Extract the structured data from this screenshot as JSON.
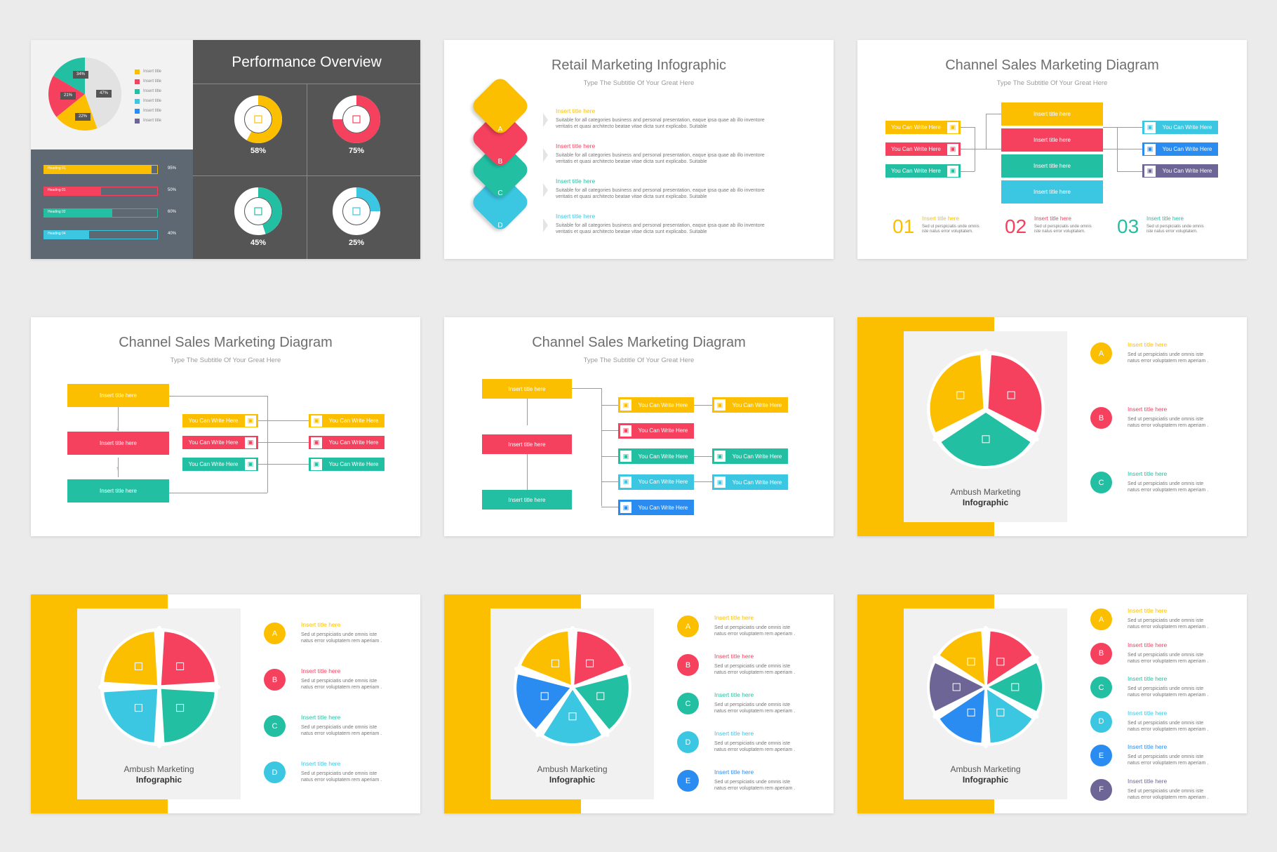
{
  "colors": {
    "yellow": "#fbbf00",
    "red": "#f5405e",
    "teal": "#23bfa3",
    "cyan": "#3bc6e2",
    "blue": "#2a8cf0",
    "purple": "#6d6596",
    "dark": "#555555",
    "slate": "#5e6872"
  },
  "perf": {
    "title": "Performance Overview",
    "pie_labels": [
      "34%",
      "21%",
      "22%",
      "47%"
    ],
    "legend": [
      "Insert title",
      "Insert title",
      "Insert title",
      "Insert title",
      "Insert title",
      "Insert title"
    ],
    "bars": [
      {
        "label": "Heading 01",
        "pct": "95%",
        "v": 0.95
      },
      {
        "label": "Heading 01",
        "pct": "50%",
        "v": 0.5
      },
      {
        "label": "Heading 02",
        "pct": "60%",
        "v": 0.6
      },
      {
        "label": "Heading 04",
        "pct": "40%",
        "v": 0.4
      }
    ],
    "donuts": [
      {
        "value": "58%",
        "v": 0.58,
        "icon": "chart-icon"
      },
      {
        "value": "75%",
        "v": 0.75,
        "icon": "people-icon"
      },
      {
        "value": "45%",
        "v": 0.45,
        "icon": "person-icon"
      },
      {
        "value": "25%",
        "v": 0.25,
        "icon": "wallet-icon"
      }
    ]
  },
  "retail": {
    "title": "Retail Marketing Infographic",
    "subtitle": "Type The Subtitle Of Your Great Here",
    "items": [
      {
        "letter": "A",
        "title": "Insert title here",
        "text1": "Suitable for all categories business and personal presentation, eaque ipsa quae ab illo inventore",
        "text2": "veritatis et quasi architecto beatae vitae dicta sunt explicabo. Suitable"
      },
      {
        "letter": "B",
        "title": "Insert title here",
        "text1": "Suitable for all categories business and personal presentation, eaque ipsa quae ab illo inventore",
        "text2": "veritatis et quasi architecto beatae vitae dicta sunt explicabo. Suitable"
      },
      {
        "letter": "C",
        "title": "Insert title here",
        "text1": "Suitable for all categories business and personal presentation, eaque ipsa quae ab illo inventore",
        "text2": "veritatis et quasi architecto beatae vitae dicta sunt explicabo. Suitable"
      },
      {
        "letter": "D",
        "title": "Insert title here",
        "text1": "Suitable for all categories business and personal presentation, eaque ipsa quae ab illo inventore",
        "text2": "veritatis et quasi architecto beatae vitae dicta sunt explicabo. Suitable"
      }
    ]
  },
  "channel1": {
    "title": "Channel Sales Marketing Diagram",
    "subtitle": "Type The Subtitle Of Your Great Here",
    "center": [
      "Insert title here",
      "Insert title here",
      "Insert title here",
      "Insert title here"
    ],
    "left": [
      "You Can Write Here",
      "You Can Write Here",
      "You Can Write Here"
    ],
    "right": [
      "You Can Write Here",
      "You Can Write Here",
      "You Can Write Here"
    ],
    "steps": [
      {
        "num": "01",
        "title": "Insert title here",
        "t1": "Sed ut perspiciatis unde omnis",
        "t2": "iste natus error voluptatem."
      },
      {
        "num": "02",
        "title": "Insert title here",
        "t1": "Sed ut perspiciatis unde omnis",
        "t2": "iste natus error voluptatem."
      },
      {
        "num": "03",
        "title": "Insert title here",
        "t1": "Sed ut perspiciatis unde omnis",
        "t2": "iste natus error voluptatem."
      }
    ]
  },
  "channel2": {
    "title": "Channel Sales Marketing Diagram",
    "subtitle": "Type The Subtitle Of Your Great Here",
    "left": [
      "Insert title here",
      "Insert title here",
      "Insert title here"
    ],
    "mid": [
      "You Can Write Here",
      "You Can Write Here",
      "You Can Write Here"
    ],
    "right": [
      "You Can Write Here",
      "You Can Write Here",
      "You Can Write Here"
    ]
  },
  "channel3": {
    "title": "Channel Sales Marketing Diagram",
    "subtitle": "Type The Subtitle Of Your Great Here",
    "left": [
      "Insert title here",
      "Insert title here",
      "Insert title here"
    ],
    "mid": [
      "You Can Write Here",
      "You Can Write Here",
      "You Can Write Here",
      "You Can Write Here",
      "You Can Write Here"
    ],
    "right": [
      "You Can Write Here",
      "You Can Write Here",
      "You Can Write Here"
    ]
  },
  "ambush": {
    "line1": "Ambush Marketing",
    "line2": "Infographic",
    "item_title": "Insert title here",
    "item_t1": "Sed ut perspiciatis unde omnis iste",
    "item_t2": "natus error voluptatem rem aperiam .",
    "letters": [
      "A",
      "B",
      "C",
      "D",
      "E",
      "F"
    ]
  }
}
